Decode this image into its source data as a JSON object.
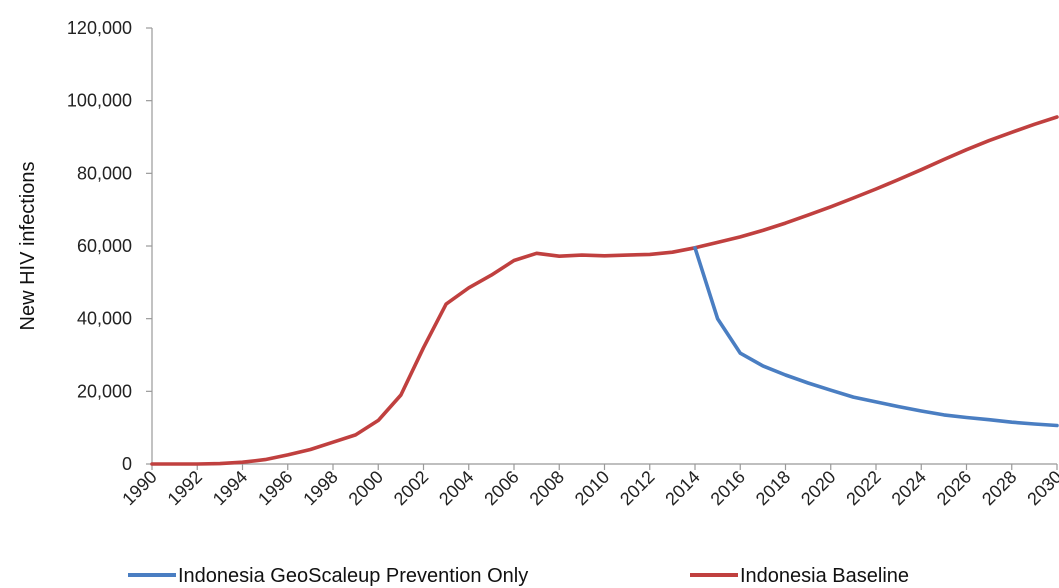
{
  "chart_data": {
    "type": "line",
    "title": "",
    "xlabel": "",
    "ylabel": "New HIV infections",
    "ylim": [
      0,
      120000
    ],
    "xlim": [
      1990,
      2030
    ],
    "yticks": [
      0,
      20000,
      40000,
      60000,
      80000,
      100000,
      120000
    ],
    "ytick_labels": [
      "0",
      "20,000",
      "40,000",
      "60,000",
      "80,000",
      "100,000",
      "120,000"
    ],
    "xticks": [
      1990,
      1992,
      1994,
      1996,
      1998,
      2000,
      2002,
      2004,
      2006,
      2008,
      2010,
      2012,
      2014,
      2016,
      2018,
      2020,
      2022,
      2024,
      2026,
      2028,
      2030
    ],
    "xtick_labels": [
      "1990",
      "1992",
      "1994",
      "1996",
      "1998",
      "2000",
      "2002",
      "2004",
      "2006",
      "2008",
      "2010",
      "2012",
      "2014",
      "2016",
      "2018",
      "2020",
      "2022",
      "2024",
      "2026",
      "2028",
      "2030"
    ],
    "grid": false,
    "legend_position": "bottom",
    "series": [
      {
        "name": "Indonesia GeoScaleup Prevention Only",
        "color": "#4a7ec2",
        "x": [
          2014,
          2015,
          2016,
          2017,
          2018,
          2019,
          2020,
          2021,
          2022,
          2023,
          2024,
          2025,
          2026,
          2027,
          2028,
          2029,
          2030
        ],
        "y": [
          59500,
          40000,
          30500,
          27000,
          24500,
          22300,
          20300,
          18400,
          17100,
          15800,
          14600,
          13500,
          12800,
          12200,
          11500,
          11000,
          10600
        ]
      },
      {
        "name": "Indonesia Baseline",
        "color": "#c0403f",
        "x": [
          1990,
          1991,
          1992,
          1993,
          1994,
          1995,
          1996,
          1997,
          1998,
          1999,
          2000,
          2001,
          2002,
          2003,
          2004,
          2005,
          2006,
          2007,
          2008,
          2009,
          2010,
          2011,
          2012,
          2013,
          2014,
          2015,
          2016,
          2017,
          2018,
          2019,
          2020,
          2021,
          2022,
          2023,
          2024,
          2025,
          2026,
          2027,
          2028,
          2029,
          2030
        ],
        "y": [
          0,
          0,
          0,
          100,
          500,
          1200,
          2500,
          4000,
          6000,
          8000,
          12000,
          19000,
          32000,
          44000,
          48500,
          52000,
          56000,
          58000,
          57200,
          57500,
          57300,
          57500,
          57700,
          58300,
          59500,
          61000,
          62500,
          64300,
          66300,
          68500,
          70800,
          73200,
          75700,
          78300,
          81000,
          83800,
          86500,
          89000,
          91300,
          93500,
          95500
        ]
      }
    ]
  }
}
